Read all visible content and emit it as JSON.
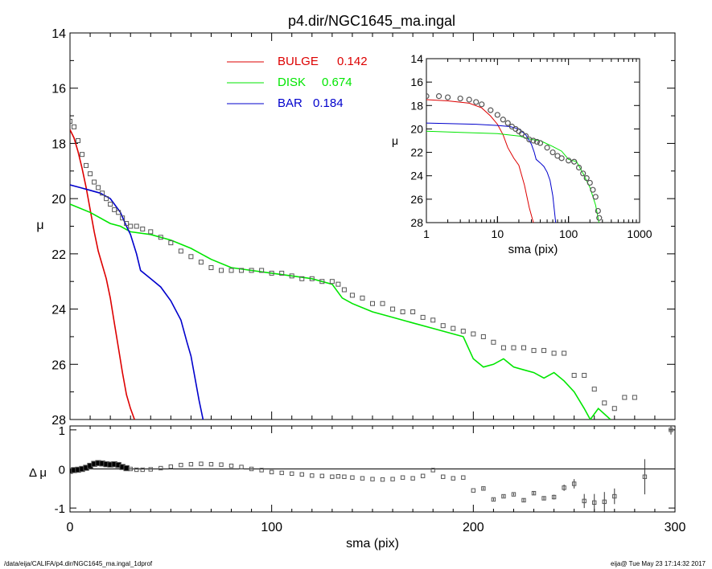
{
  "title": "p4.dir/NGC1645_ma.ingal",
  "footer": {
    "left": "/data/eija/CALIFA/p4.dir/NGC1645_ma.ingal_1dprof",
    "right": "eija@  Tue May 23 17:14:32 2017"
  },
  "colors": {
    "bulge": "#dd0000",
    "disk": "#00e600",
    "bar": "#0000cc",
    "data": "#555555"
  },
  "chart_data": [
    {
      "type": "line",
      "panel": "main",
      "xlabel": "",
      "ylabel": "μ",
      "xlim": [
        0,
        300
      ],
      "ylim": [
        28,
        14
      ],
      "y_inverted": true,
      "yticks": [
        14,
        16,
        18,
        20,
        22,
        24,
        26,
        28
      ],
      "legend": {
        "position": "top-center",
        "entries": [
          {
            "key": "bulge",
            "label": "BULGE",
            "value": "0.142"
          },
          {
            "key": "disk",
            "label": "DISK",
            "value": "0.674"
          },
          {
            "key": "bar",
            "label": "BAR",
            "value": "0.184"
          }
        ]
      },
      "series": [
        {
          "key": "bulge",
          "x": [
            0,
            2,
            4,
            6,
            8,
            10,
            12,
            14,
            16,
            18,
            20,
            22,
            24,
            26,
            28,
            30,
            32
          ],
          "y": [
            17.5,
            17.8,
            18.3,
            18.9,
            19.6,
            20.4,
            21.2,
            21.9,
            22.4,
            22.9,
            23.6,
            24.5,
            25.4,
            26.3,
            27.1,
            27.6,
            28.0
          ]
        },
        {
          "key": "disk",
          "x": [
            0,
            10,
            20,
            25,
            30,
            40,
            50,
            60,
            70,
            80,
            90,
            100,
            110,
            120,
            130,
            135,
            140,
            150,
            160,
            170,
            180,
            190,
            195,
            200,
            205,
            210,
            215,
            220,
            225,
            230,
            235,
            240,
            245,
            250,
            255,
            258,
            262,
            268
          ],
          "y": [
            20.2,
            20.5,
            20.9,
            21.0,
            21.2,
            21.3,
            21.5,
            21.8,
            22.2,
            22.5,
            22.6,
            22.7,
            22.8,
            22.9,
            23.1,
            23.6,
            23.8,
            24.1,
            24.3,
            24.5,
            24.7,
            24.9,
            25.0,
            25.8,
            26.1,
            26.0,
            25.8,
            26.1,
            26.2,
            26.3,
            26.5,
            26.3,
            26.6,
            27.0,
            27.6,
            28.0,
            27.6,
            28.0
          ]
        },
        {
          "key": "bar",
          "x": [
            0,
            5,
            10,
            15,
            20,
            25,
            28,
            30,
            33,
            35,
            40,
            45,
            50,
            55,
            58,
            60,
            62,
            64,
            66
          ],
          "y": [
            19.5,
            19.6,
            19.7,
            19.8,
            20.0,
            20.5,
            21.0,
            21.3,
            22.0,
            22.6,
            22.9,
            23.2,
            23.7,
            24.4,
            25.2,
            25.7,
            26.5,
            27.3,
            28.0
          ]
        },
        {
          "key": "data",
          "style": "points",
          "x": [
            0,
            2,
            4,
            6,
            8,
            10,
            12,
            14,
            16,
            18,
            20,
            22,
            24,
            26,
            28,
            30,
            33,
            36,
            40,
            45,
            50,
            55,
            60,
            65,
            70,
            75,
            80,
            85,
            90,
            95,
            100,
            105,
            110,
            115,
            120,
            125,
            130,
            133,
            136,
            140,
            145,
            150,
            155,
            160,
            165,
            170,
            175,
            180,
            185,
            190,
            195,
            200,
            205,
            210,
            215,
            220,
            225,
            230,
            235,
            240,
            245,
            250,
            255,
            260,
            265,
            270,
            275,
            280
          ],
          "y": [
            17.2,
            17.4,
            17.9,
            18.4,
            18.8,
            19.1,
            19.4,
            19.6,
            19.8,
            20.0,
            20.2,
            20.4,
            20.5,
            20.7,
            20.9,
            21.0,
            21.0,
            21.1,
            21.2,
            21.4,
            21.6,
            21.9,
            22.1,
            22.3,
            22.5,
            22.6,
            22.6,
            22.6,
            22.6,
            22.6,
            22.7,
            22.7,
            22.8,
            22.9,
            22.9,
            23.0,
            23.0,
            23.1,
            23.3,
            23.5,
            23.6,
            23.8,
            23.8,
            24.0,
            24.1,
            24.1,
            24.3,
            24.4,
            24.6,
            24.7,
            24.8,
            24.9,
            25.0,
            25.2,
            25.4,
            25.4,
            25.4,
            25.5,
            25.5,
            25.6,
            25.6,
            26.4,
            26.4,
            26.9,
            27.4,
            27.6,
            27.2,
            27.2
          ]
        }
      ]
    },
    {
      "type": "line",
      "panel": "inset",
      "xscale": "log",
      "xlabel": "sma (pix)",
      "ylabel": "μ",
      "xlim": [
        1,
        1000
      ],
      "ylim": [
        28,
        14
      ],
      "y_inverted": true,
      "xticks": [
        1,
        10,
        100,
        1000
      ],
      "yticks": [
        14,
        16,
        18,
        20,
        22,
        24,
        26,
        28
      ],
      "series": [
        {
          "key": "bulge",
          "x": [
            1,
            2,
            4,
            6,
            8,
            10,
            12,
            14,
            17,
            20,
            24,
            28,
            32
          ],
          "y": [
            17.5,
            17.6,
            17.8,
            18.2,
            18.9,
            19.6,
            20.5,
            21.6,
            22.5,
            23.1,
            24.8,
            26.7,
            28.0
          ]
        },
        {
          "key": "disk",
          "x": [
            1,
            3,
            10,
            20,
            30,
            40,
            60,
            80,
            100,
            130,
            160,
            200,
            240,
            268
          ],
          "y": [
            20.2,
            20.3,
            20.4,
            20.6,
            20.9,
            21.0,
            21.5,
            21.9,
            22.6,
            22.8,
            23.8,
            25.0,
            26.5,
            28.0
          ]
        },
        {
          "key": "bar",
          "x": [
            1,
            5,
            10,
            15,
            20,
            25,
            28,
            30,
            33,
            35,
            40,
            45,
            50,
            55,
            60,
            66
          ],
          "y": [
            19.5,
            19.6,
            19.7,
            19.8,
            20.0,
            20.5,
            21.0,
            21.3,
            22.0,
            22.6,
            22.9,
            23.2,
            23.7,
            24.4,
            25.7,
            28.0
          ]
        },
        {
          "key": "data",
          "style": "points",
          "x": [
            1,
            1.5,
            2,
            3,
            4,
            5,
            6,
            8,
            10,
            12,
            14,
            16,
            18,
            20,
            22,
            25,
            28,
            32,
            36,
            40,
            50,
            60,
            70,
            80,
            100,
            120,
            140,
            160,
            180,
            200,
            220,
            240,
            260,
            270
          ],
          "y": [
            17.2,
            17.2,
            17.3,
            17.4,
            17.5,
            17.7,
            17.9,
            18.4,
            18.8,
            19.2,
            19.5,
            19.8,
            20.0,
            20.2,
            20.4,
            20.6,
            20.9,
            21.0,
            21.1,
            21.2,
            21.6,
            22.0,
            22.3,
            22.5,
            22.7,
            22.8,
            23.3,
            23.8,
            24.2,
            24.6,
            25.2,
            25.8,
            27.0,
            27.6
          ]
        }
      ]
    },
    {
      "type": "scatter",
      "panel": "residual",
      "xlabel": "sma (pix)",
      "ylabel": "Δ μ",
      "xlim": [
        0,
        300
      ],
      "ylim": [
        -1.1,
        1.1
      ],
      "xticks": [
        0,
        100,
        200,
        300
      ],
      "yticks": [
        -1,
        0,
        1
      ],
      "zero_line": true,
      "series": [
        {
          "key": "residual",
          "x": [
            0,
            2,
            4,
            6,
            8,
            10,
            12,
            14,
            16,
            18,
            20,
            22,
            24,
            26,
            28,
            30,
            33,
            36,
            40,
            45,
            50,
            55,
            60,
            65,
            70,
            75,
            80,
            85,
            90,
            95,
            100,
            105,
            110,
            115,
            120,
            125,
            130,
            133,
            136,
            140,
            145,
            150,
            155,
            160,
            165,
            170,
            175,
            180,
            185,
            190,
            195,
            200,
            205,
            210,
            215,
            220,
            225,
            230,
            235,
            240,
            245,
            250,
            255,
            260,
            265,
            270,
            285,
            298
          ],
          "y": [
            -0.05,
            -0.03,
            -0.02,
            0.0,
            0.03,
            0.08,
            0.13,
            0.15,
            0.14,
            0.12,
            0.11,
            0.12,
            0.1,
            0.05,
            0.02,
            0.0,
            -0.02,
            -0.02,
            -0.01,
            0.02,
            0.06,
            0.1,
            0.12,
            0.13,
            0.12,
            0.11,
            0.08,
            0.05,
            0.0,
            -0.03,
            -0.08,
            -0.1,
            -0.12,
            -0.14,
            -0.17,
            -0.18,
            -0.2,
            -0.19,
            -0.2,
            -0.22,
            -0.24,
            -0.26,
            -0.27,
            -0.26,
            -0.22,
            -0.24,
            -0.18,
            -0.03,
            -0.2,
            -0.24,
            -0.22,
            -0.55,
            -0.5,
            -0.78,
            -0.7,
            -0.65,
            -0.8,
            -0.62,
            -0.75,
            -0.72,
            -0.48,
            -0.38,
            -0.82,
            -0.86,
            -0.84,
            -0.7,
            -0.2,
            1.0
          ],
          "err": [
            0.01,
            0.01,
            0.01,
            0.01,
            0.01,
            0.01,
            0.01,
            0.01,
            0.01,
            0.01,
            0.01,
            0.01,
            0.01,
            0.01,
            0.01,
            0.01,
            0.01,
            0.01,
            0.01,
            0.01,
            0.01,
            0.01,
            0.01,
            0.01,
            0.01,
            0.01,
            0.01,
            0.01,
            0.01,
            0.01,
            0.01,
            0.01,
            0.01,
            0.01,
            0.01,
            0.01,
            0.01,
            0.01,
            0.01,
            0.01,
            0.01,
            0.01,
            0.01,
            0.01,
            0.01,
            0.01,
            0.01,
            0.01,
            0.01,
            0.01,
            0.01,
            0.02,
            0.03,
            0.03,
            0.03,
            0.03,
            0.04,
            0.04,
            0.05,
            0.06,
            0.08,
            0.12,
            0.18,
            0.22,
            0.25,
            0.2,
            0.45,
            0.12
          ]
        }
      ]
    }
  ]
}
